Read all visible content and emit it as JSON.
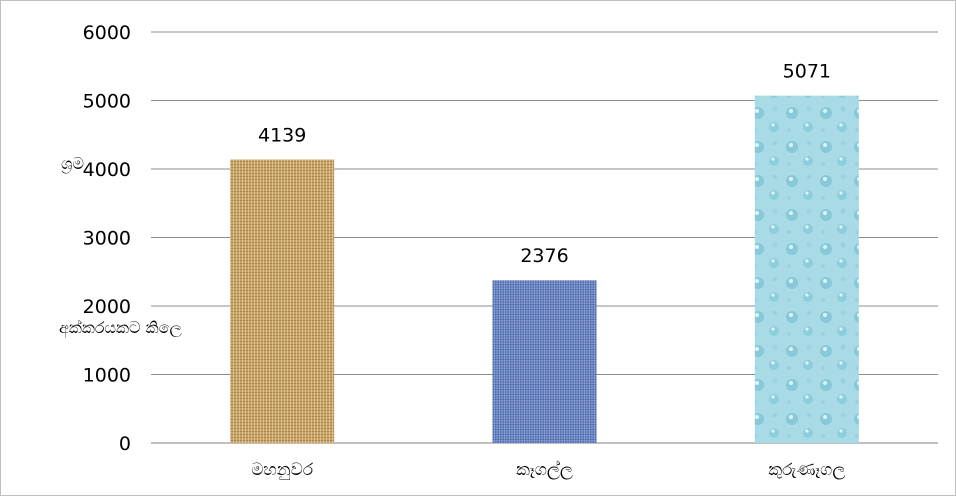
{
  "chart_data": {
    "type": "bar",
    "categories": [
      "මහනුවර",
      "කෑගල්ල",
      "කුරුණෑගල"
    ],
    "values": [
      4139,
      2376,
      5071
    ],
    "data_labels": [
      "4139",
      "2376",
      "5071"
    ],
    "ylim": [
      0,
      6000
    ],
    "yticks": [
      0,
      1000,
      2000,
      3000,
      4000,
      5000,
      6000
    ],
    "ytick_labels": [
      "0",
      "1000",
      "2000",
      "3000",
      "4000",
      "5000",
      "6000"
    ],
    "ylabel_line1": "ශ්‍රම",
    "ylabel_line2": "අක්කරයකට කිලෙ",
    "grid": true,
    "bar_colors": [
      "#c9a468",
      "#6b86c4",
      "#a9dbe6"
    ]
  }
}
